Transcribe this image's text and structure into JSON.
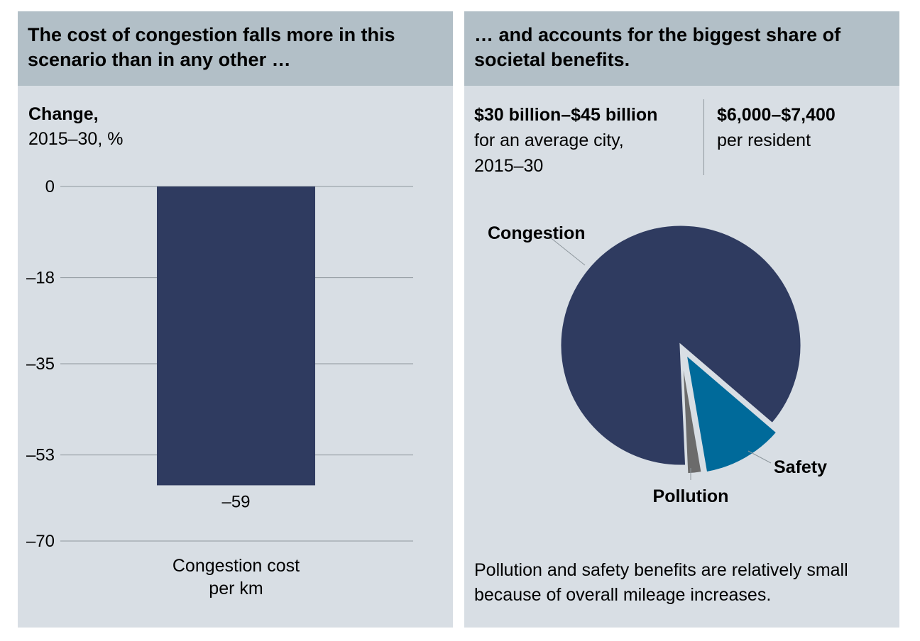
{
  "left_panel": {
    "header": "The cost of congestion falls more in this scenario than in any other …",
    "unit_title": "Change,",
    "unit_subtitle": "2015–30, %"
  },
  "right_panel": {
    "header": "… and accounts for the biggest share of societal benefits.",
    "stat_total_bold": "$30 billion–$45 billion",
    "stat_total_line2": "for an average city,",
    "stat_total_line3": "2015–30",
    "stat_resident_bold": "$6,000–$7,400",
    "stat_resident_line2": "per resident",
    "note": "Pollution and safety benefits are relatively small because of overall mileage increases."
  },
  "chart_data": [
    {
      "type": "bar",
      "ylabel": "Change, 2015–30, %",
      "ylim": [
        -70,
        0
      ],
      "yticks": [
        0,
        -18,
        -35,
        -53,
        -70
      ],
      "ytick_labels": [
        "0",
        "–18",
        "–35",
        "–53",
        "–70"
      ],
      "grid": true,
      "categories": [
        "Congestion cost per km"
      ],
      "category_lines": [
        [
          "Congestion cost",
          "per km"
        ]
      ],
      "values": [
        -59
      ],
      "value_labels": [
        "–59"
      ],
      "bar_color": "#2f3b60",
      "gridline_color": "#8e979d"
    },
    {
      "type": "pie",
      "labels": [
        "Congestion",
        "Safety",
        "Pollution"
      ],
      "values": [
        87,
        11,
        2
      ],
      "colors": [
        "#2f3b60",
        "#006a9a",
        "#6b6b6b"
      ],
      "exploded": [
        "Safety",
        "Pollution"
      ]
    }
  ]
}
